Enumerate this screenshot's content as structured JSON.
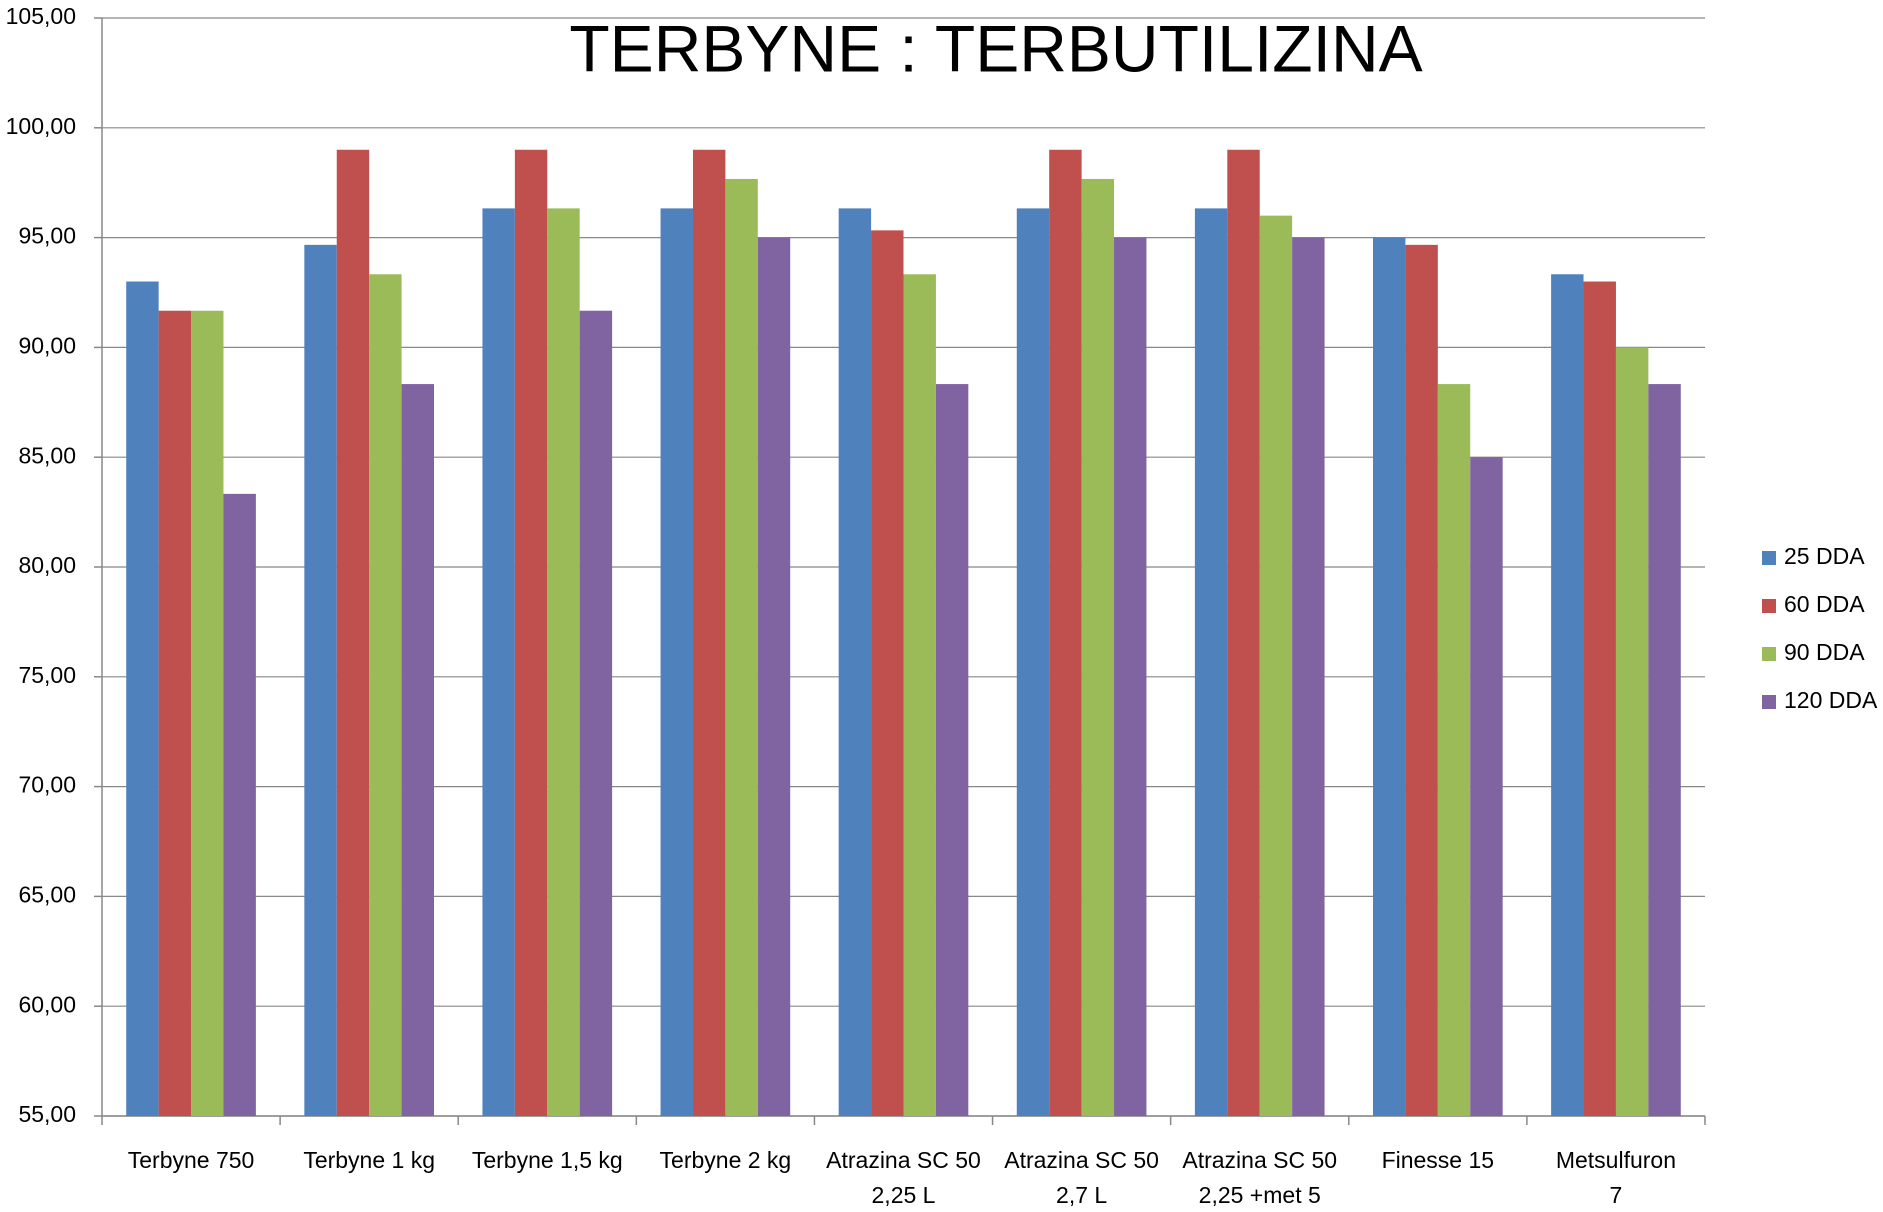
{
  "chart_data": {
    "type": "bar",
    "title": "TERBYNE : TERBUTILIZINA",
    "categories": [
      [
        "Terbyne 750"
      ],
      [
        "Terbyne 1 kg"
      ],
      [
        "Terbyne 1,5 kg"
      ],
      [
        "Terbyne 2 kg"
      ],
      [
        "Atrazina SC 50",
        "2,25 L"
      ],
      [
        "Atrazina SC 50",
        "2,7 L"
      ],
      [
        "Atrazina SC 50",
        "2,25 +met 5"
      ],
      [
        "Finesse 15"
      ],
      [
        "Metsulfuron",
        "7"
      ]
    ],
    "series": [
      {
        "name": "25 DDA",
        "color": "#4f81bd",
        "values": [
          93.0,
          94.67,
          96.33,
          96.33,
          96.33,
          96.33,
          96.33,
          95.0,
          93.33
        ]
      },
      {
        "name": "60 DDA",
        "color": "#c0504d",
        "values": [
          91.67,
          99.0,
          99.0,
          99.0,
          95.33,
          99.0,
          99.0,
          94.67,
          93.0
        ]
      },
      {
        "name": "90 DDA",
        "color": "#9bbb59",
        "values": [
          91.67,
          93.33,
          96.33,
          97.67,
          93.33,
          97.67,
          96.0,
          88.33,
          90.0
        ]
      },
      {
        "name": "120 DDA",
        "color": "#8064a2",
        "values": [
          83.33,
          88.33,
          91.67,
          95.0,
          88.33,
          95.0,
          95.0,
          85.0,
          88.33
        ]
      }
    ],
    "ylim": [
      55,
      105
    ],
    "yticks": [
      {
        "value": 55,
        "label": "55,00"
      },
      {
        "value": 60,
        "label": "60,00"
      },
      {
        "value": 65,
        "label": "65,00"
      },
      {
        "value": 70,
        "label": "70,00"
      },
      {
        "value": 75,
        "label": "75,00"
      },
      {
        "value": 80,
        "label": "80,00"
      },
      {
        "value": 85,
        "label": "85,00"
      },
      {
        "value": 90,
        "label": "90,00"
      },
      {
        "value": 95,
        "label": "95,00"
      },
      {
        "value": 100,
        "label": "100,00"
      },
      {
        "value": 105,
        "label": "105,00"
      }
    ],
    "grid": true,
    "legend": "right"
  }
}
